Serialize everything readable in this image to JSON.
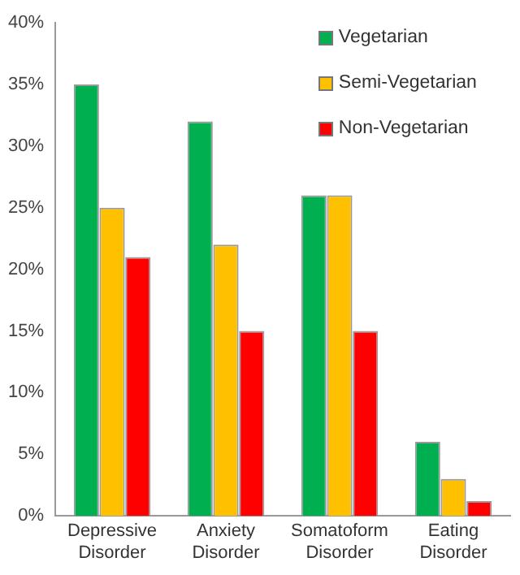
{
  "chart_data": {
    "type": "bar",
    "categories": [
      "Depressive Disorder",
      "Anxiety Disorder",
      "Somatoform Disorder",
      "Eating Disorder"
    ],
    "series": [
      {
        "name": "Vegetarian",
        "color": "#00b050",
        "values": [
          35,
          32,
          26,
          6
        ]
      },
      {
        "name": "Semi-Vegetarian",
        "color": "#ffc000",
        "values": [
          25,
          22,
          26,
          3
        ]
      },
      {
        "name": "Non-Vegetarian",
        "color": "#ff0000",
        "values": [
          21,
          15,
          15,
          1.2
        ]
      }
    ],
    "ylim": [
      0,
      40
    ],
    "yticks": [
      {
        "value": 0,
        "label": "0%"
      },
      {
        "value": 5,
        "label": "5%"
      },
      {
        "value": 10,
        "label": "10%"
      },
      {
        "value": 15,
        "label": "15%"
      },
      {
        "value": 20,
        "label": "20%"
      },
      {
        "value": 25,
        "label": "25%"
      },
      {
        "value": 30,
        "label": "30%"
      },
      {
        "value": 35,
        "label": "35%"
      },
      {
        "value": 40,
        "label": "40%"
      }
    ],
    "grid": false,
    "legend": "top right"
  }
}
